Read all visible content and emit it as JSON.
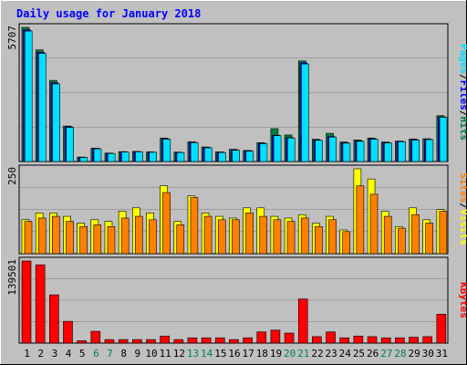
{
  "title": "Daily usage for January 2018",
  "colors": {
    "background": "#c0c0c0",
    "plot_background": "#c0c0c0",
    "title": "#0000ff",
    "hits": "#008040",
    "files": "#0000ff",
    "pages": "#00e0ff",
    "visits": "#ffff00",
    "sites": "#ff8000",
    "kbytes": "#ff0000",
    "weekend_day": "#00805c",
    "weekday": "#000000",
    "gridline": "#808080"
  },
  "legend": {
    "top": [
      {
        "label": "Pages",
        "color_key": "pages"
      },
      {
        "label": "/",
        "color_key": "weekday"
      },
      {
        "label": "Files",
        "color_key": "files"
      },
      {
        "label": "/",
        "color_key": "weekday"
      },
      {
        "label": "Hits",
        "color_key": "hits"
      }
    ],
    "middle": [
      {
        "label": "Sites",
        "color_key": "sites"
      },
      {
        "label": "/",
        "color_key": "weekday"
      },
      {
        "label": "Visits",
        "color_key": "visits"
      }
    ],
    "bottom": [
      {
        "label": "KBytes",
        "color_key": "kbytes"
      }
    ]
  },
  "chart_data": [
    {
      "type": "bar",
      "panel": "top",
      "ymax_label": "5707",
      "ylim": [
        0,
        5707
      ],
      "grid": true,
      "categories": [
        "1",
        "2",
        "3",
        "4",
        "5",
        "6",
        "7",
        "8",
        "9",
        "10",
        "11",
        "12",
        "13",
        "14",
        "15",
        "16",
        "17",
        "18",
        "19",
        "20",
        "21",
        "22",
        "23",
        "24",
        "25",
        "26",
        "27",
        "28",
        "29",
        "30",
        "31"
      ],
      "weekend_days": [
        "6",
        "7",
        "13",
        "14",
        "20",
        "21",
        "27",
        "28"
      ],
      "series": [
        {
          "name": "Hits",
          "color_key": "hits",
          "values": [
            5707,
            4750,
            3450,
            1510,
            190,
            570,
            360,
            420,
            430,
            410,
            1000,
            400,
            840,
            620,
            410,
            520,
            470,
            800,
            1400,
            1130,
            4280,
            950,
            1200,
            830,
            920,
            1000,
            830,
            870,
            960,
            970,
            1950
          ]
        },
        {
          "name": "Files",
          "color_key": "files",
          "values": [
            5600,
            4650,
            3350,
            1480,
            180,
            560,
            350,
            410,
            420,
            400,
            970,
            390,
            820,
            600,
            400,
            500,
            460,
            780,
            1120,
            1020,
            4200,
            910,
            1060,
            800,
            880,
            970,
            810,
            860,
            930,
            950,
            1900
          ]
        },
        {
          "name": "Pages",
          "color_key": "pages",
          "values": [
            5550,
            4600,
            3300,
            1450,
            170,
            540,
            340,
            400,
            410,
            390,
            950,
            380,
            800,
            580,
            380,
            480,
            440,
            760,
            1100,
            1000,
            4150,
            900,
            1040,
            780,
            860,
            950,
            790,
            840,
            910,
            930,
            1880
          ]
        }
      ]
    },
    {
      "type": "bar",
      "panel": "middle",
      "ymax_label": "250",
      "ylim": [
        0,
        250
      ],
      "grid": true,
      "categories": [
        "1",
        "2",
        "3",
        "4",
        "5",
        "6",
        "7",
        "8",
        "9",
        "10",
        "11",
        "12",
        "13",
        "14",
        "15",
        "16",
        "17",
        "18",
        "19",
        "20",
        "21",
        "22",
        "23",
        "24",
        "25",
        "26",
        "27",
        "28",
        "29",
        "30",
        "31"
      ],
      "series": [
        {
          "name": "Visits",
          "color_key": "visits",
          "values": [
            100,
            120,
            120,
            110,
            90,
            100,
            95,
            125,
            135,
            120,
            200,
            95,
            170,
            120,
            110,
            105,
            135,
            135,
            110,
            105,
            115,
            90,
            110,
            70,
            250,
            220,
            125,
            80,
            135,
            100,
            130
          ]
        },
        {
          "name": "Sites",
          "color_key": "sites",
          "values": [
            95,
            105,
            110,
            95,
            80,
            85,
            80,
            105,
            110,
            100,
            180,
            85,
            165,
            110,
            100,
            100,
            120,
            110,
            100,
            95,
            105,
            80,
            100,
            65,
            200,
            175,
            110,
            75,
            115,
            90,
            125
          ]
        }
      ]
    },
    {
      "type": "bar",
      "panel": "bottom",
      "ymax_label": "139501",
      "ylim": [
        0,
        139501
      ],
      "grid": true,
      "categories": [
        "1",
        "2",
        "3",
        "4",
        "5",
        "6",
        "7",
        "8",
        "9",
        "10",
        "11",
        "12",
        "13",
        "14",
        "15",
        "16",
        "17",
        "18",
        "19",
        "20",
        "21",
        "22",
        "23",
        "24",
        "25",
        "26",
        "27",
        "28",
        "29",
        "30",
        "31"
      ],
      "series": [
        {
          "name": "KBytes",
          "color_key": "kbytes",
          "values": [
            139501,
            133000,
            82000,
            37000,
            4000,
            20000,
            6000,
            6000,
            6000,
            6000,
            12000,
            6000,
            9000,
            9000,
            9000,
            6000,
            9000,
            19000,
            22000,
            17000,
            75000,
            11000,
            19000,
            9000,
            12000,
            11000,
            9000,
            9000,
            10000,
            11000,
            49000
          ]
        }
      ]
    }
  ]
}
